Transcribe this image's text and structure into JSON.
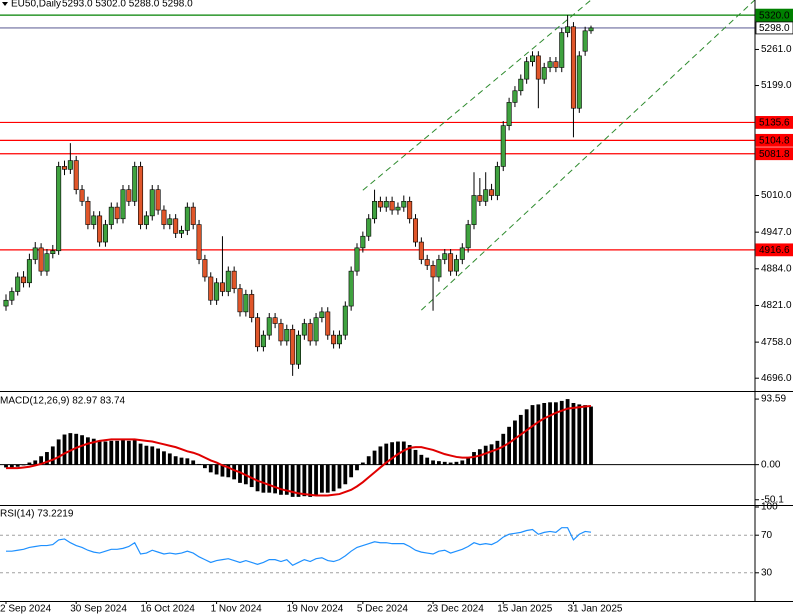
{
  "chart_data": [
    {
      "type": "candlestick",
      "symbol": "EU50,Daily",
      "header_ohlc": "5293.0 5302.0 5288.0 5298.0",
      "up_color": "#3fa23f",
      "down_color": "#e0562a",
      "categories": [
        "2 Sep 2024",
        null,
        null,
        null,
        null,
        null,
        null,
        null,
        null,
        null,
        null,
        null,
        "30 Sep 2024",
        null,
        null,
        null,
        null,
        null,
        null,
        null,
        null,
        null,
        null,
        null,
        "16 Oct 2024",
        null,
        null,
        null,
        null,
        null,
        null,
        null,
        null,
        null,
        null,
        null,
        "1 Nov 2024",
        null,
        null,
        null,
        null,
        null,
        null,
        null,
        null,
        null,
        null,
        null,
        null,
        "19 Nov 2024",
        null,
        null,
        null,
        null,
        null,
        null,
        null,
        null,
        null,
        null,
        null,
        "5 Dec 2024",
        null,
        null,
        null,
        null,
        null,
        null,
        null,
        null,
        null,
        null,
        null,
        "23 Dec 2024",
        null,
        null,
        null,
        null,
        null,
        null,
        null,
        null,
        null,
        null,
        null,
        "15 Jan 2025",
        null,
        null,
        null,
        null,
        null,
        null,
        null,
        null,
        null,
        null,
        null,
        "31 Jan 2025",
        null,
        null,
        null
      ],
      "open": [
        4820,
        4830,
        4845,
        4870,
        4860,
        4900,
        4920,
        4880,
        4910,
        4915,
        5060,
        5055,
        5070,
        5020,
        5000,
        4960,
        4975,
        4930,
        4960,
        4990,
        4970,
        5020,
        5000,
        5060,
        4960,
        4975,
        5020,
        4985,
        4960,
        4970,
        4945,
        4950,
        4990,
        4960,
        4900,
        4870,
        4830,
        4860,
        4845,
        4880,
        4850,
        4810,
        4840,
        4800,
        4750,
        4770,
        4800,
        4790,
        4760,
        4780,
        4720,
        4770,
        4790,
        4760,
        4800,
        4810,
        4770,
        4755,
        4770,
        4820,
        4880,
        4920,
        4940,
        4970,
        5000,
        4990,
        5000,
        4985,
        4990,
        5000,
        4970,
        4930,
        4900,
        4890,
        4870,
        4900,
        4910,
        4880,
        4900,
        4920,
        4960,
        5010,
        5000,
        5020,
        5010,
        5060,
        5130,
        5170,
        5190,
        5210,
        5240,
        5250,
        5210,
        5230,
        5240,
        5230,
        5290,
        5300,
        5160,
        5258,
        5293
      ],
      "high": [
        4840,
        4852,
        4878,
        4880,
        4910,
        4930,
        4928,
        4918,
        4925,
        5068,
        5070,
        5100,
        5078,
        5028,
        5008,
        4983,
        4983,
        4968,
        4998,
        4998,
        5028,
        5028,
        5068,
        5068,
        4983,
        5028,
        5028,
        4993,
        4978,
        4978,
        4958,
        4998,
        4998,
        4968,
        4908,
        4878,
        4868,
        4940,
        4888,
        4888,
        4858,
        4848,
        4848,
        4808,
        4778,
        4808,
        4808,
        4798,
        4788,
        4788,
        4778,
        4798,
        4798,
        4808,
        4818,
        4818,
        4778,
        4778,
        4828,
        4888,
        4928,
        4948,
        4978,
        5020,
        5008,
        5008,
        5008,
        4998,
        5010,
        5008,
        4978,
        4938,
        4908,
        4898,
        4908,
        4918,
        4918,
        4908,
        4928,
        4968,
        5050,
        5040,
        5050,
        5030,
        5068,
        5138,
        5178,
        5198,
        5218,
        5248,
        5258,
        5258,
        5238,
        5248,
        5248,
        5298,
        5320,
        5308,
        5258,
        5300,
        5302
      ],
      "low": [
        4812,
        4822,
        4838,
        4852,
        4852,
        4892,
        4872,
        4872,
        4902,
        4908,
        5045,
        5047,
        5012,
        4992,
        4952,
        4952,
        4922,
        4922,
        4952,
        4962,
        4962,
        4992,
        4992,
        4952,
        4952,
        4967,
        4977,
        4952,
        4952,
        4937,
        4937,
        4942,
        4952,
        4892,
        4862,
        4822,
        4822,
        4837,
        4837,
        4842,
        4802,
        4802,
        4792,
        4742,
        4742,
        4762,
        4782,
        4752,
        4752,
        4700,
        4712,
        4762,
        4752,
        4752,
        4792,
        4762,
        4747,
        4747,
        4762,
        4812,
        4872,
        4912,
        4932,
        4962,
        4982,
        4982,
        4977,
        4977,
        4982,
        4962,
        4922,
        4892,
        4882,
        4812,
        4862,
        4892,
        4872,
        4872,
        4892,
        4912,
        4952,
        4992,
        4992,
        5002,
        5002,
        5052,
        5122,
        5162,
        5182,
        5202,
        5232,
        5160,
        5202,
        5222,
        5222,
        5222,
        5282,
        5110,
        5152,
        5250,
        5288
      ],
      "close": [
        4830,
        4845,
        4870,
        4860,
        4900,
        4920,
        4880,
        4910,
        4915,
        5060,
        5055,
        5070,
        5020,
        5000,
        4960,
        4975,
        4930,
        4960,
        4990,
        4970,
        5020,
        5000,
        5060,
        4960,
        4975,
        5020,
        4985,
        4960,
        4970,
        4945,
        4950,
        4990,
        4960,
        4900,
        4870,
        4830,
        4860,
        4845,
        4880,
        4850,
        4810,
        4840,
        4800,
        4750,
        4770,
        4800,
        4790,
        4760,
        4780,
        4720,
        4770,
        4790,
        4760,
        4800,
        4810,
        4770,
        4755,
        4770,
        4820,
        4880,
        4920,
        4940,
        4970,
        5000,
        4990,
        5000,
        4985,
        4990,
        5000,
        4970,
        4930,
        4900,
        4890,
        4870,
        4900,
        4910,
        4880,
        4900,
        4920,
        4960,
        5010,
        5000,
        5020,
        5010,
        5060,
        5130,
        5170,
        5190,
        5210,
        5240,
        5250,
        5210,
        5230,
        5240,
        5230,
        5290,
        5300,
        5160,
        5250,
        5293,
        5298
      ],
      "ylim": [
        4674,
        5346
      ],
      "yticks": [
        {
          "value": 5261,
          "label": "5261.0"
        },
        {
          "value": 5199,
          "label": "5199.0"
        },
        {
          "value": 5010,
          "label": "5010.0"
        },
        {
          "value": 4947,
          "label": "4947.0"
        },
        {
          "value": 4884,
          "label": "4884.0"
        },
        {
          "value": 4821,
          "label": "4821.0"
        },
        {
          "value": 4758,
          "label": "4758.0"
        },
        {
          "value": 4696,
          "label": "4696.0"
        }
      ],
      "levels": [
        {
          "value": 5320,
          "label": "5320.0",
          "color": "#008000",
          "style": "filled"
        },
        {
          "value": 5298,
          "label": "5298.0",
          "color": "#6b6b9e",
          "style": "outline"
        },
        {
          "value": 5135.6,
          "label": "5135.6",
          "color": "#ff0000",
          "style": "filled"
        },
        {
          "value": 5104.8,
          "label": "5104.8",
          "color": "#ff0000",
          "style": "filled"
        },
        {
          "value": 5081.8,
          "label": "5081.8",
          "color": "#ff0000",
          "style": "filled"
        },
        {
          "value": 4916.6,
          "label": "4916.6",
          "color": "#ff0000",
          "style": "filled"
        }
      ],
      "trendlines": [
        {
          "color": "#2e8b2e",
          "points": [
            [
              61,
              5019
            ],
            [
              100,
              5346
            ]
          ]
        },
        {
          "color": "#2e8b2e",
          "points": [
            [
              71,
              4813
            ],
            [
              128,
              5346
            ]
          ]
        }
      ]
    },
    {
      "type": "macd",
      "title": "MACD(12,26,9) 82.97 83.74",
      "histogram_color": "#000000",
      "signal_color": "#e00000",
      "histogram": [
        -4,
        -4,
        -3,
        -1,
        3,
        6,
        12,
        18,
        26,
        36,
        43,
        45,
        44,
        42,
        39,
        37,
        34,
        33,
        34,
        34,
        35,
        34,
        35,
        30,
        27,
        26,
        23,
        19,
        16,
        12,
        10,
        9,
        6,
        1,
        -5,
        -11,
        -14,
        -17,
        -18,
        -21,
        -26,
        -28,
        -32,
        -38,
        -40,
        -40,
        -41,
        -43,
        -43,
        -46,
        -46,
        -45,
        -46,
        -43,
        -40,
        -40,
        -38,
        -34,
        -28,
        -18,
        -8,
        3,
        12,
        20,
        26,
        30,
        32,
        33,
        33,
        28,
        21,
        14,
        10,
        6,
        5,
        4,
        3,
        4,
        6,
        11,
        18,
        22,
        27,
        29,
        34,
        44,
        54,
        63,
        71,
        79,
        85,
        86,
        88,
        89,
        89,
        91,
        93.59,
        88,
        86,
        85,
        82.97
      ],
      "signal": [
        -5,
        -5,
        -5,
        -4,
        -3,
        -1,
        1,
        4,
        7,
        11,
        16,
        20,
        24,
        27,
        30,
        32,
        34,
        35,
        36,
        36,
        36,
        36,
        36,
        35,
        34,
        33,
        31,
        29,
        27,
        25,
        22,
        19,
        17,
        14,
        10,
        6,
        3,
        -1,
        -4,
        -8,
        -11,
        -15,
        -19,
        -23,
        -26,
        -29,
        -32,
        -35,
        -37,
        -39,
        -41,
        -42,
        -43,
        -44,
        -44,
        -44,
        -43,
        -42,
        -39,
        -36,
        -31,
        -25,
        -18,
        -11,
        -4,
        3,
        9,
        15,
        20,
        24,
        25,
        25,
        23,
        21,
        18,
        15,
        13,
        11,
        10,
        10,
        11,
        13,
        16,
        19,
        22,
        26,
        31,
        37,
        43,
        49,
        55,
        61,
        66,
        70,
        74,
        77,
        80,
        81,
        82,
        83,
        83.74
      ],
      "ylim": [
        -57.6,
        103.7
      ],
      "yticks": [
        93.59,
        {
          "value": 0,
          "label": "0.00"
        },
        -50.1
      ]
    },
    {
      "type": "line",
      "title": "RSI(14) 73.2219",
      "color": "#1e90ff",
      "values": [
        53,
        53,
        54,
        55,
        57,
        58,
        59,
        59,
        60,
        65,
        66,
        62,
        59,
        57,
        54,
        52,
        51,
        53,
        55,
        55,
        56,
        58,
        62,
        50,
        51,
        54,
        52,
        50,
        51,
        50,
        51,
        53,
        51,
        47,
        44,
        41,
        43,
        44,
        45,
        43,
        41,
        43,
        41,
        39,
        41,
        44,
        44,
        42,
        44,
        38,
        41,
        44,
        42,
        45,
        46,
        43,
        42,
        44,
        48,
        53,
        57,
        59,
        61,
        63,
        62,
        62,
        61,
        61,
        61,
        58,
        54,
        52,
        51,
        50,
        53,
        54,
        51,
        53,
        55,
        58,
        62,
        60,
        61,
        60,
        63,
        68,
        71,
        72,
        73,
        75,
        76,
        71,
        73,
        74,
        73,
        78,
        78,
        65,
        71,
        74,
        73.2219
      ],
      "ylim": [
        0,
        100
      ],
      "yticks": [
        100,
        70,
        30
      ]
    }
  ]
}
